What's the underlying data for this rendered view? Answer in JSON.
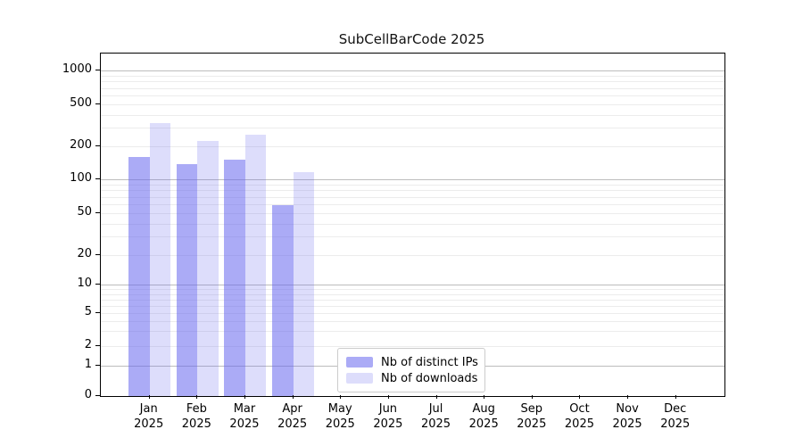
{
  "title": "SubCellBarCode 2025",
  "colors": {
    "accent": "#6666ee",
    "bar_distinct_ips": "rgba(102,102,238,0.55)",
    "bar_downloads": "rgba(102,102,238,0.22)",
    "major_gridline": "#bdbdbd",
    "minor_gridline": "#ececec",
    "legend_border": "#cccccc"
  },
  "chart_data": {
    "type": "bar",
    "title": "SubCellBarCode 2025",
    "x": {
      "months": [
        "Jan",
        "Feb",
        "Mar",
        "Apr",
        "May",
        "Jun",
        "Jul",
        "Aug",
        "Sep",
        "Oct",
        "Nov",
        "Dec"
      ],
      "year": "2025"
    },
    "categories": [
      "Jan 2025",
      "Feb 2025",
      "Mar 2025",
      "Apr 2025",
      "May 2025",
      "Jun 2025",
      "Jul 2025",
      "Aug 2025",
      "Sep 2025",
      "Oct 2025",
      "Nov 2025",
      "Dec 2025"
    ],
    "series": [
      {
        "name": "Nb of distinct IPs",
        "color": "rgba(102,102,238,0.55)",
        "values": [
          160,
          138,
          152,
          59,
          0,
          0,
          0,
          0,
          0,
          0,
          0,
          0
        ]
      },
      {
        "name": "Nb of downloads",
        "color": "rgba(102,102,238,0.22)",
        "values": [
          333,
          226,
          258,
          116,
          0,
          0,
          0,
          0,
          0,
          0,
          0,
          0
        ]
      }
    ],
    "y_axis": {
      "scale": "symlog",
      "ticks": [
        0,
        1,
        2,
        5,
        10,
        20,
        50,
        100,
        200,
        500,
        1000
      ],
      "minor_gridlines": [
        3,
        4,
        6,
        7,
        8,
        9,
        30,
        40,
        60,
        70,
        80,
        90,
        300,
        400,
        600,
        700,
        800,
        900
      ],
      "major_gridline_values": [
        1,
        10,
        100,
        1000
      ]
    },
    "grid": true,
    "legend_position": "lower center",
    "xlabel": "",
    "ylabel": ""
  }
}
